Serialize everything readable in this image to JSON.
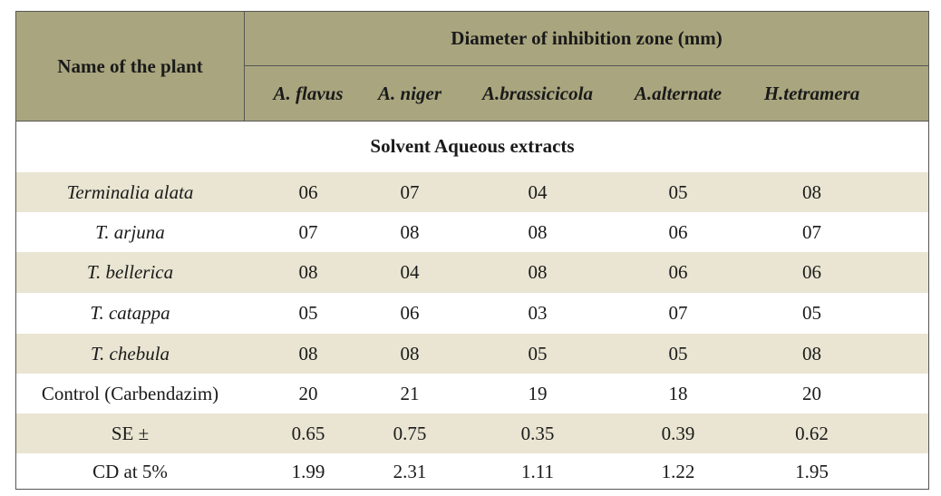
{
  "table": {
    "header": {
      "name_col": "Name of the plant",
      "group": "Diameter of inhibition zone (mm)",
      "species": [
        "A. flavus",
        "A. niger",
        "A.brassicicola",
        "A.alternate",
        "H.tetramera"
      ]
    },
    "section_label": "Solvent Aqueous extracts",
    "rows": [
      {
        "name": "Terminalia alata",
        "italic": true,
        "values": [
          "06",
          "07",
          "04",
          "05",
          "08"
        ]
      },
      {
        "name": "T. arjuna",
        "italic": true,
        "values": [
          "07",
          "08",
          "08",
          "06",
          "07"
        ]
      },
      {
        "name": "T. bellerica",
        "italic": true,
        "values": [
          "08",
          "04",
          "08",
          "06",
          "06"
        ]
      },
      {
        "name": "T. catappa",
        "italic": true,
        "values": [
          "05",
          "06",
          "03",
          "07",
          "05"
        ]
      },
      {
        "name": "T. chebula",
        "italic": true,
        "values": [
          "08",
          "08",
          "05",
          "05",
          "08"
        ]
      },
      {
        "name": "Control (Carbendazim)",
        "italic": false,
        "values": [
          "20",
          "21",
          "19",
          "18",
          "20"
        ]
      },
      {
        "name": "SE ±",
        "italic": false,
        "values": [
          "0.65",
          "0.75",
          "0.35",
          "0.39",
          "0.62"
        ]
      },
      {
        "name": "CD at 5%",
        "italic": false,
        "values": [
          "1.99",
          "2.31",
          "1.11",
          "1.22",
          "1.95"
        ]
      }
    ]
  },
  "colors": {
    "header_bg": "#a9a67f",
    "stripe_bg": "#e9e5d2",
    "border": "#555555"
  }
}
